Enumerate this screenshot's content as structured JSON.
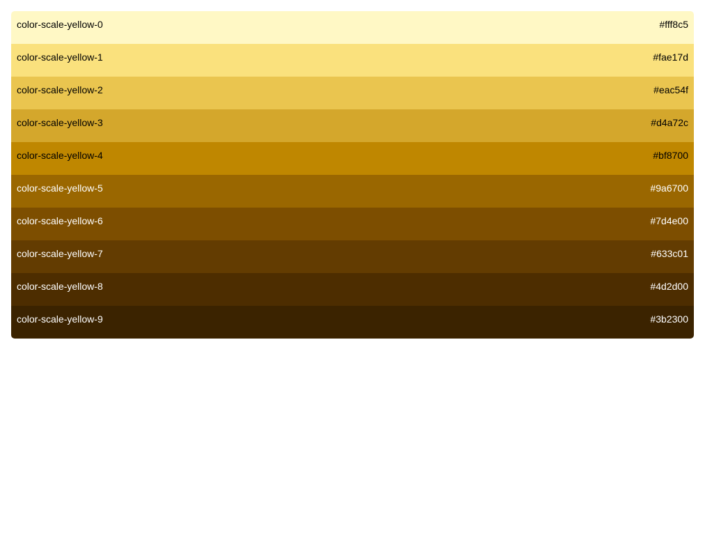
{
  "palette": {
    "swatches": [
      {
        "name": "color-scale-yellow-0",
        "hex": "#fff8c5",
        "color": "#fff8c5",
        "text_color": "#000000"
      },
      {
        "name": "color-scale-yellow-1",
        "hex": "#fae17d",
        "color": "#fae17d",
        "text_color": "#000000"
      },
      {
        "name": "color-scale-yellow-2",
        "hex": "#eac54f",
        "color": "#eac54f",
        "text_color": "#000000"
      },
      {
        "name": "color-scale-yellow-3",
        "hex": "#d4a72c",
        "color": "#d4a72c",
        "text_color": "#000000"
      },
      {
        "name": "color-scale-yellow-4",
        "hex": "#bf8700",
        "color": "#bf8700",
        "text_color": "#000000"
      },
      {
        "name": "color-scale-yellow-5",
        "hex": "#9a6700",
        "color": "#9a6700",
        "text_color": "#ffffff"
      },
      {
        "name": "color-scale-yellow-6",
        "hex": "#7d4e00",
        "color": "#7d4e00",
        "text_color": "#ffffff"
      },
      {
        "name": "color-scale-yellow-7",
        "hex": "#633c01",
        "color": "#633c01",
        "text_color": "#ffffff"
      },
      {
        "name": "color-scale-yellow-8",
        "hex": "#4d2d00",
        "color": "#4d2d00",
        "text_color": "#ffffff"
      },
      {
        "name": "color-scale-yellow-9",
        "hex": "#3b2300",
        "color": "#3b2300",
        "text_color": "#ffffff"
      }
    ]
  }
}
